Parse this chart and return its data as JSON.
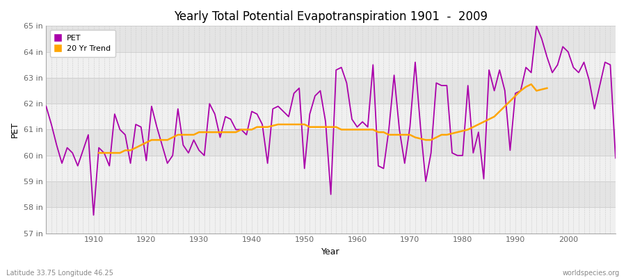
{
  "title": "Yearly Total Potential Evapotranspiration 1901  -  2009",
  "xlabel": "Year",
  "ylabel": "PET",
  "footnote_left": "Latitude 33.75 Longitude 46.25",
  "footnote_right": "worldspecies.org",
  "bg_color": "#ffffff",
  "plot_bg_color": "#ffffff",
  "band_color_light": "#f0f0f0",
  "band_color_dark": "#e4e4e4",
  "grid_color": "#cccccc",
  "pet_color": "#aa00aa",
  "trend_color": "#ffa500",
  "ylim": [
    57,
    65
  ],
  "yticks": [
    57,
    58,
    59,
    60,
    61,
    62,
    63,
    64,
    65
  ],
  "ytick_labels": [
    "57 in",
    "58 in",
    "59 in",
    "60 in",
    "61 in",
    "62 in",
    "63 in",
    "64 in",
    "65 in"
  ],
  "years": [
    1901,
    1902,
    1903,
    1904,
    1905,
    1906,
    1907,
    1908,
    1909,
    1910,
    1911,
    1912,
    1913,
    1914,
    1915,
    1916,
    1917,
    1918,
    1919,
    1920,
    1921,
    1922,
    1923,
    1924,
    1925,
    1926,
    1927,
    1928,
    1929,
    1930,
    1931,
    1932,
    1933,
    1934,
    1935,
    1936,
    1937,
    1938,
    1939,
    1940,
    1941,
    1942,
    1943,
    1944,
    1945,
    1946,
    1947,
    1948,
    1949,
    1950,
    1951,
    1952,
    1953,
    1954,
    1955,
    1956,
    1957,
    1958,
    1959,
    1960,
    1961,
    1962,
    1963,
    1964,
    1965,
    1966,
    1967,
    1968,
    1969,
    1970,
    1971,
    1972,
    1973,
    1974,
    1975,
    1976,
    1977,
    1978,
    1979,
    1980,
    1981,
    1982,
    1983,
    1984,
    1985,
    1986,
    1987,
    1988,
    1989,
    1990,
    1991,
    1992,
    1993,
    1994,
    1995,
    1996,
    1997,
    1998,
    1999,
    2000,
    2001,
    2002,
    2003,
    2004,
    2005,
    2006,
    2007,
    2008,
    2009
  ],
  "pet_values": [
    61.9,
    61.2,
    60.4,
    59.7,
    60.3,
    60.1,
    59.6,
    60.2,
    60.8,
    57.7,
    60.3,
    60.1,
    59.6,
    61.6,
    61.0,
    60.8,
    59.7,
    61.2,
    61.1,
    59.8,
    61.9,
    61.1,
    60.4,
    59.7,
    60.0,
    61.8,
    60.4,
    60.1,
    60.6,
    60.2,
    60.0,
    62.0,
    61.6,
    60.7,
    61.5,
    61.4,
    61.0,
    61.0,
    60.8,
    61.7,
    61.6,
    61.2,
    59.7,
    61.8,
    61.9,
    61.7,
    61.5,
    62.4,
    62.6,
    59.5,
    61.6,
    62.3,
    62.5,
    61.3,
    58.5,
    63.3,
    63.4,
    62.8,
    61.4,
    61.1,
    61.3,
    61.1,
    63.5,
    59.6,
    59.5,
    61.0,
    63.1,
    61.0,
    59.7,
    61.1,
    63.6,
    61.1,
    59.0,
    60.1,
    62.8,
    62.7,
    62.7,
    60.1,
    60.0,
    60.0,
    62.7,
    60.1,
    60.9,
    59.1,
    63.3,
    62.5,
    63.3,
    62.5,
    60.2,
    62.4,
    62.5,
    63.4,
    63.2,
    65.0,
    64.5,
    63.8,
    63.2,
    63.5,
    64.2,
    64.0,
    63.4,
    63.2,
    63.6,
    62.9,
    61.8,
    62.7,
    63.6,
    63.5,
    59.9
  ],
  "trend_values": [
    null,
    null,
    null,
    null,
    null,
    null,
    null,
    null,
    null,
    null,
    60.1,
    60.1,
    60.1,
    60.1,
    60.1,
    60.2,
    60.2,
    60.3,
    60.4,
    60.5,
    60.6,
    60.6,
    60.6,
    60.6,
    60.7,
    60.8,
    60.8,
    60.8,
    60.8,
    60.9,
    60.9,
    60.9,
    60.9,
    60.9,
    60.9,
    60.9,
    60.9,
    61.0,
    61.0,
    61.0,
    61.1,
    61.1,
    61.1,
    61.15,
    61.2,
    61.2,
    61.2,
    61.2,
    61.2,
    61.2,
    61.1,
    61.1,
    61.1,
    61.1,
    61.1,
    61.1,
    61.0,
    61.0,
    61.0,
    61.0,
    61.0,
    61.0,
    61.0,
    60.9,
    60.9,
    60.8,
    60.8,
    60.8,
    60.8,
    60.8,
    60.7,
    60.65,
    60.6,
    60.6,
    60.7,
    60.8,
    60.8,
    60.85,
    60.9,
    60.95,
    61.0,
    61.1,
    61.2,
    61.3,
    61.4,
    61.5,
    61.7,
    61.9,
    62.1,
    62.3,
    62.5,
    62.65,
    62.75,
    62.5,
    62.55,
    62.6,
    null,
    null,
    null,
    null,
    null,
    null,
    null,
    null,
    null,
    null,
    null,
    null,
    null
  ]
}
